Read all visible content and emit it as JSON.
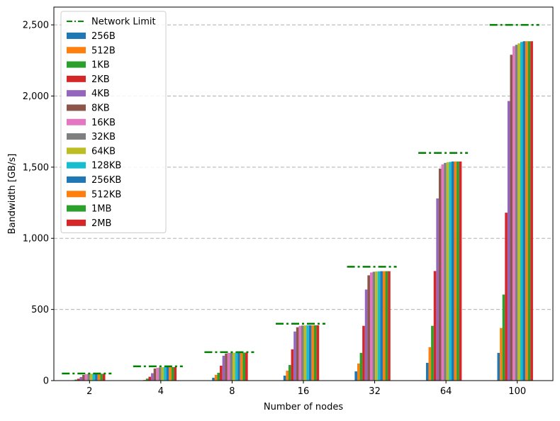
{
  "chart_data": {
    "type": "bar",
    "xlabel": "Number of nodes",
    "ylabel": "Bandwidth [GB/s]",
    "ylim": [
      0,
      2625
    ],
    "yticks": [
      0,
      500,
      1000,
      1500,
      2000,
      2500
    ],
    "ytick_labels": [
      "0",
      "500",
      "1,000",
      "1,500",
      "2,000",
      "2,500"
    ],
    "grid": "horizontal dashed",
    "legend_position": "top-left",
    "categories": [
      "2",
      "4",
      "8",
      "16",
      "32",
      "64",
      "100"
    ],
    "network_limit": {
      "name": "Network Limit",
      "color": "#008000",
      "values": [
        50,
        100,
        200,
        400,
        800,
        1600,
        2500
      ]
    },
    "series": [
      {
        "name": "256B",
        "color": "#1f77b4",
        "values": [
          1,
          2,
          20,
          35,
          65,
          125,
          195
        ]
      },
      {
        "name": "512B",
        "color": "#ff7f0e",
        "values": [
          3,
          5,
          40,
          70,
          120,
          235,
          370
        ]
      },
      {
        "name": "1KB",
        "color": "#2ca02c",
        "values": [
          7,
          14,
          55,
          110,
          195,
          385,
          605
        ]
      },
      {
        "name": "2KB",
        "color": "#d62728",
        "values": [
          13,
          27,
          105,
          220,
          385,
          770,
          1180
        ]
      },
      {
        "name": "4KB",
        "color": "#9467bd",
        "values": [
          25,
          52,
          175,
          345,
          640,
          1280,
          1965
        ]
      },
      {
        "name": "8KB",
        "color": "#8c564b",
        "values": [
          40,
          85,
          190,
          375,
          740,
          1490,
          2290
        ]
      },
      {
        "name": "16KB",
        "color": "#e377c2",
        "values": [
          45,
          90,
          195,
          385,
          760,
          1520,
          2350
        ]
      },
      {
        "name": "32KB",
        "color": "#7f7f7f",
        "values": [
          47,
          93,
          195,
          387,
          765,
          1530,
          2360
        ]
      },
      {
        "name": "64KB",
        "color": "#bcbd22",
        "values": [
          48,
          94,
          196,
          388,
          767,
          1535,
          2370
        ]
      },
      {
        "name": "128KB",
        "color": "#17becf",
        "values": [
          48,
          95,
          197,
          389,
          768,
          1537,
          2380
        ]
      },
      {
        "name": "256KB",
        "color": "#1f77b4",
        "values": [
          48,
          95,
          197,
          389,
          769,
          1540,
          2385
        ]
      },
      {
        "name": "512KB",
        "color": "#ff7f0e",
        "values": [
          48,
          95,
          197,
          389,
          769,
          1540,
          2385
        ]
      },
      {
        "name": "1MB",
        "color": "#2ca02c",
        "values": [
          48,
          95,
          197,
          389,
          769,
          1540,
          2385
        ]
      },
      {
        "name": "2MB",
        "color": "#d62728",
        "values": [
          48,
          95,
          197,
          389,
          769,
          1540,
          2385
        ]
      }
    ]
  }
}
